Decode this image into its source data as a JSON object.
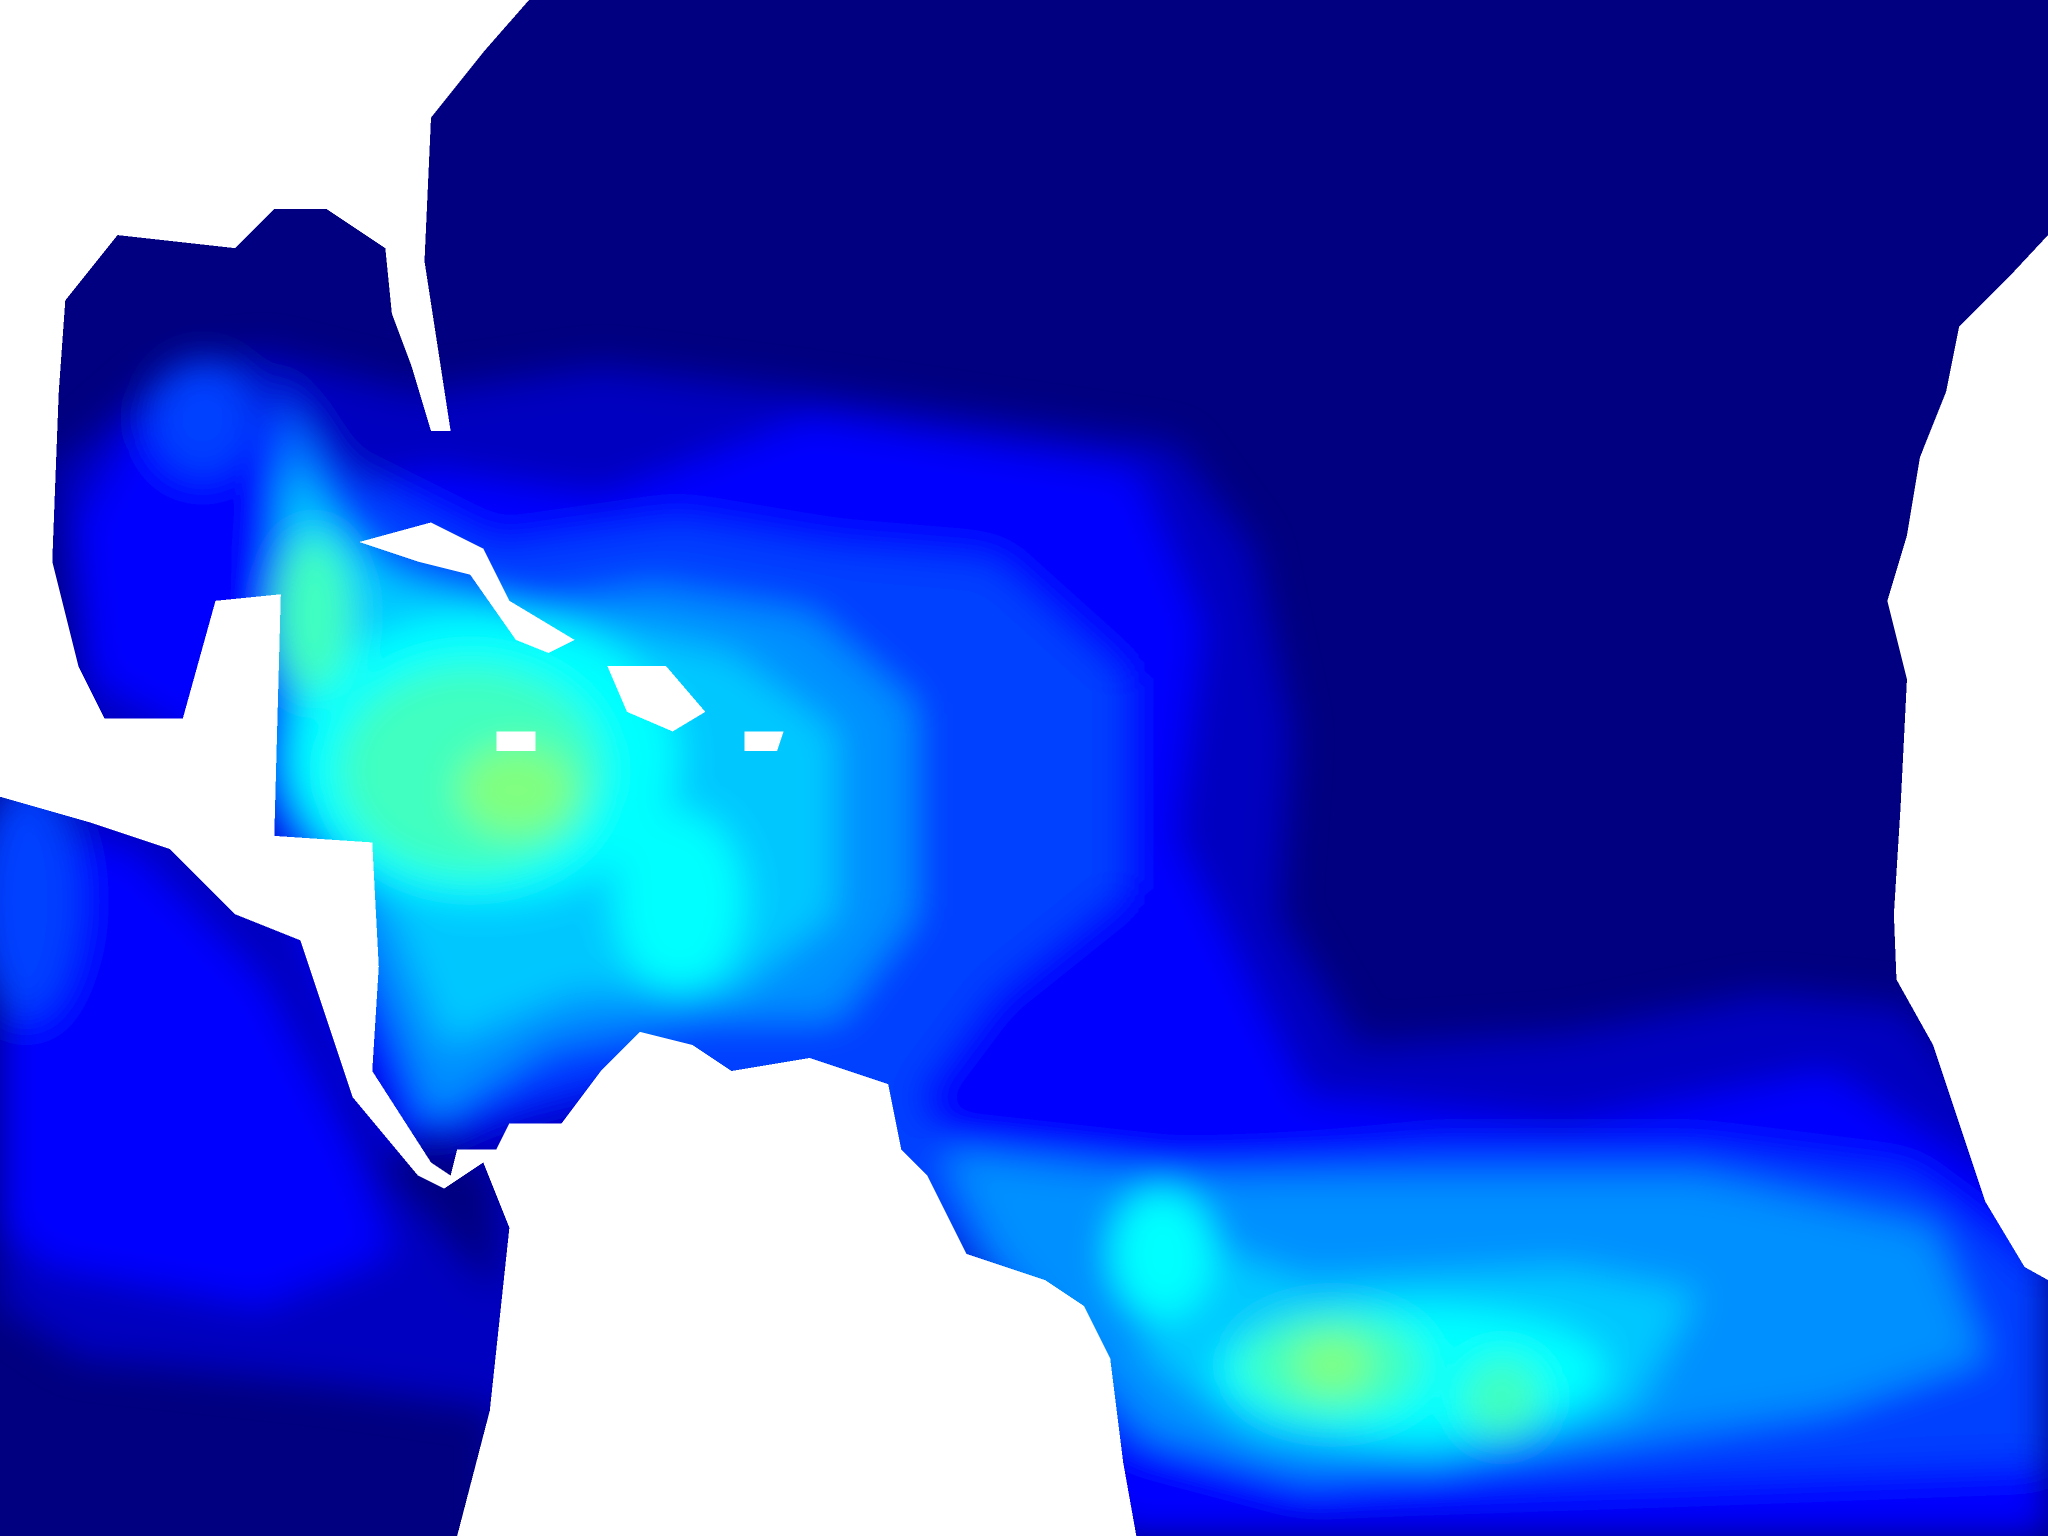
{
  "map": {
    "type": "raster-field",
    "land_color": "#ffffff",
    "colormap": [
      "#000080",
      "#0000c0",
      "#0000ff",
      "#0040ff",
      "#0090ff",
      "#00c8ff",
      "#00ffff",
      "#40ffc0",
      "#80ff80"
    ]
  }
}
